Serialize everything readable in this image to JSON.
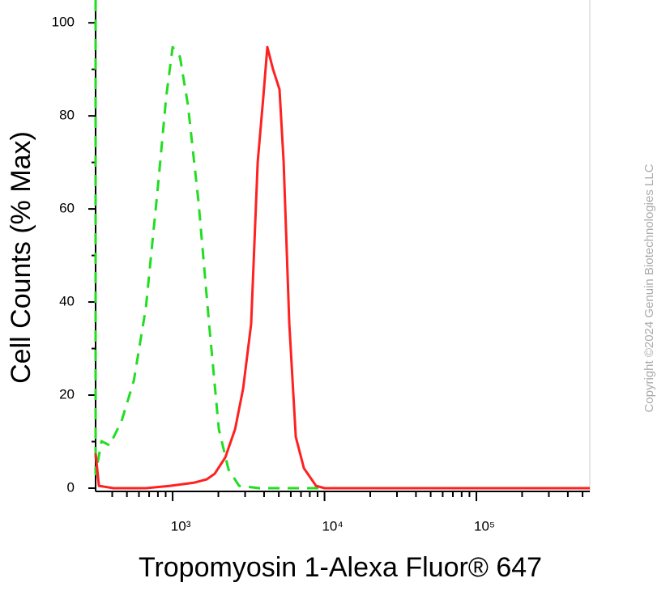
{
  "chart_data": {
    "type": "line",
    "xlabel": "Tropomyosin 1-Alexa Fluor® 647",
    "ylabel": "Cell Counts (% Max)",
    "copyright": "Copyright ©2024 Genuin Biotechnologies LLC",
    "xscale": "log",
    "xlim": [
      311,
      558000
    ],
    "ylim": [
      -0.7,
      104.9
    ],
    "xticks": [
      {
        "value": 1000,
        "label": "10³"
      },
      {
        "value": 10000,
        "label": "10⁴"
      },
      {
        "value": 100000,
        "label": "10⁵"
      }
    ],
    "x_minor_ticks": [
      400,
      500,
      600,
      700,
      800,
      900,
      2000,
      3000,
      4000,
      5000,
      6000,
      7000,
      8000,
      9000,
      20000,
      30000,
      40000,
      50000,
      60000,
      70000,
      80000,
      90000,
      200000,
      300000,
      400000,
      500000
    ],
    "yticks": [
      0,
      20,
      40,
      60,
      80,
      100
    ],
    "y_minor_ticks": [
      10,
      30,
      50,
      70,
      90
    ],
    "series": [
      {
        "color": "#22dd22",
        "dashed": true,
        "x": [
          311,
          311,
          340,
          384,
          461,
          555,
          667,
          801,
          906,
          1000,
          1117,
          1262,
          1481,
          1738,
          2015,
          2333,
          2737,
          3720,
          558000
        ],
        "values": [
          104.9,
          3,
          10.1,
          9.2,
          14.4,
          23.1,
          38.8,
          64.9,
          84,
          94.8,
          92.7,
          82.3,
          61.4,
          35.3,
          12.7,
          4,
          0.5,
          0,
          0
        ]
      },
      {
        "color": "#ff2020",
        "dashed": false,
        "x": [
          311,
          327,
          408,
          667,
          963,
          1393,
          1675,
          1892,
          2221,
          2577,
          2912,
          3289,
          3631,
          3954,
          4205,
          4581,
          5055,
          5378,
          5866,
          6471,
          7313,
          8790,
          10000,
          558000
        ],
        "values": [
          7.5,
          0.5,
          0,
          0,
          0.5,
          1.2,
          1.9,
          3.1,
          6.6,
          12.7,
          21.4,
          35.3,
          70.1,
          84,
          94.8,
          90,
          85.7,
          70.1,
          35.3,
          11,
          4.3,
          0.5,
          0,
          0
        ]
      }
    ]
  }
}
